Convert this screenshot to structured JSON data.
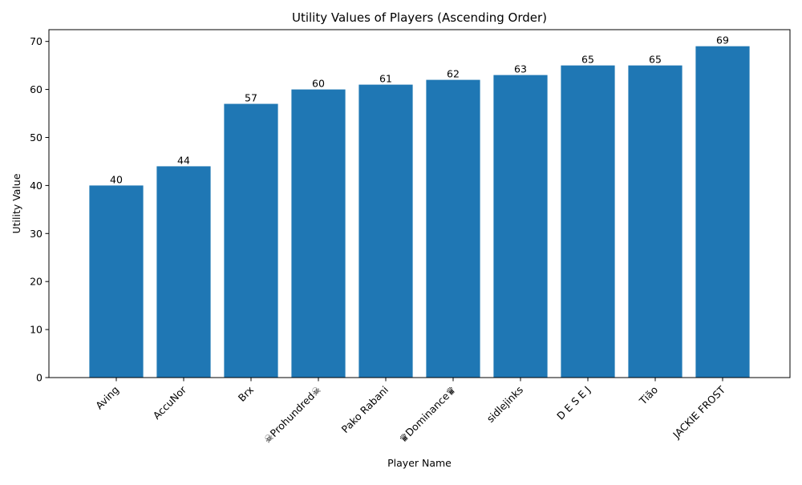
{
  "chart_data": {
    "type": "bar",
    "title": "Utility Values of Players (Ascending Order)",
    "xlabel": "Player Name",
    "ylabel": "Utility Value",
    "categories": [
      "Aving",
      "AccuNor",
      "Brx",
      "☠Prohundred☠",
      "Pako Rabani",
      "♛Dominance♛",
      "sidlejinks",
      "D E S E J",
      "Tião",
      "JACKIE FROST"
    ],
    "values": [
      40,
      44,
      57,
      60,
      61,
      62,
      63,
      65,
      65,
      69
    ],
    "ylim": [
      0,
      72.45
    ],
    "yticks": [
      0,
      10,
      20,
      30,
      40,
      50,
      60,
      70
    ],
    "grid": false,
    "bar_color": "#1f77b4",
    "data_labels": true
  }
}
